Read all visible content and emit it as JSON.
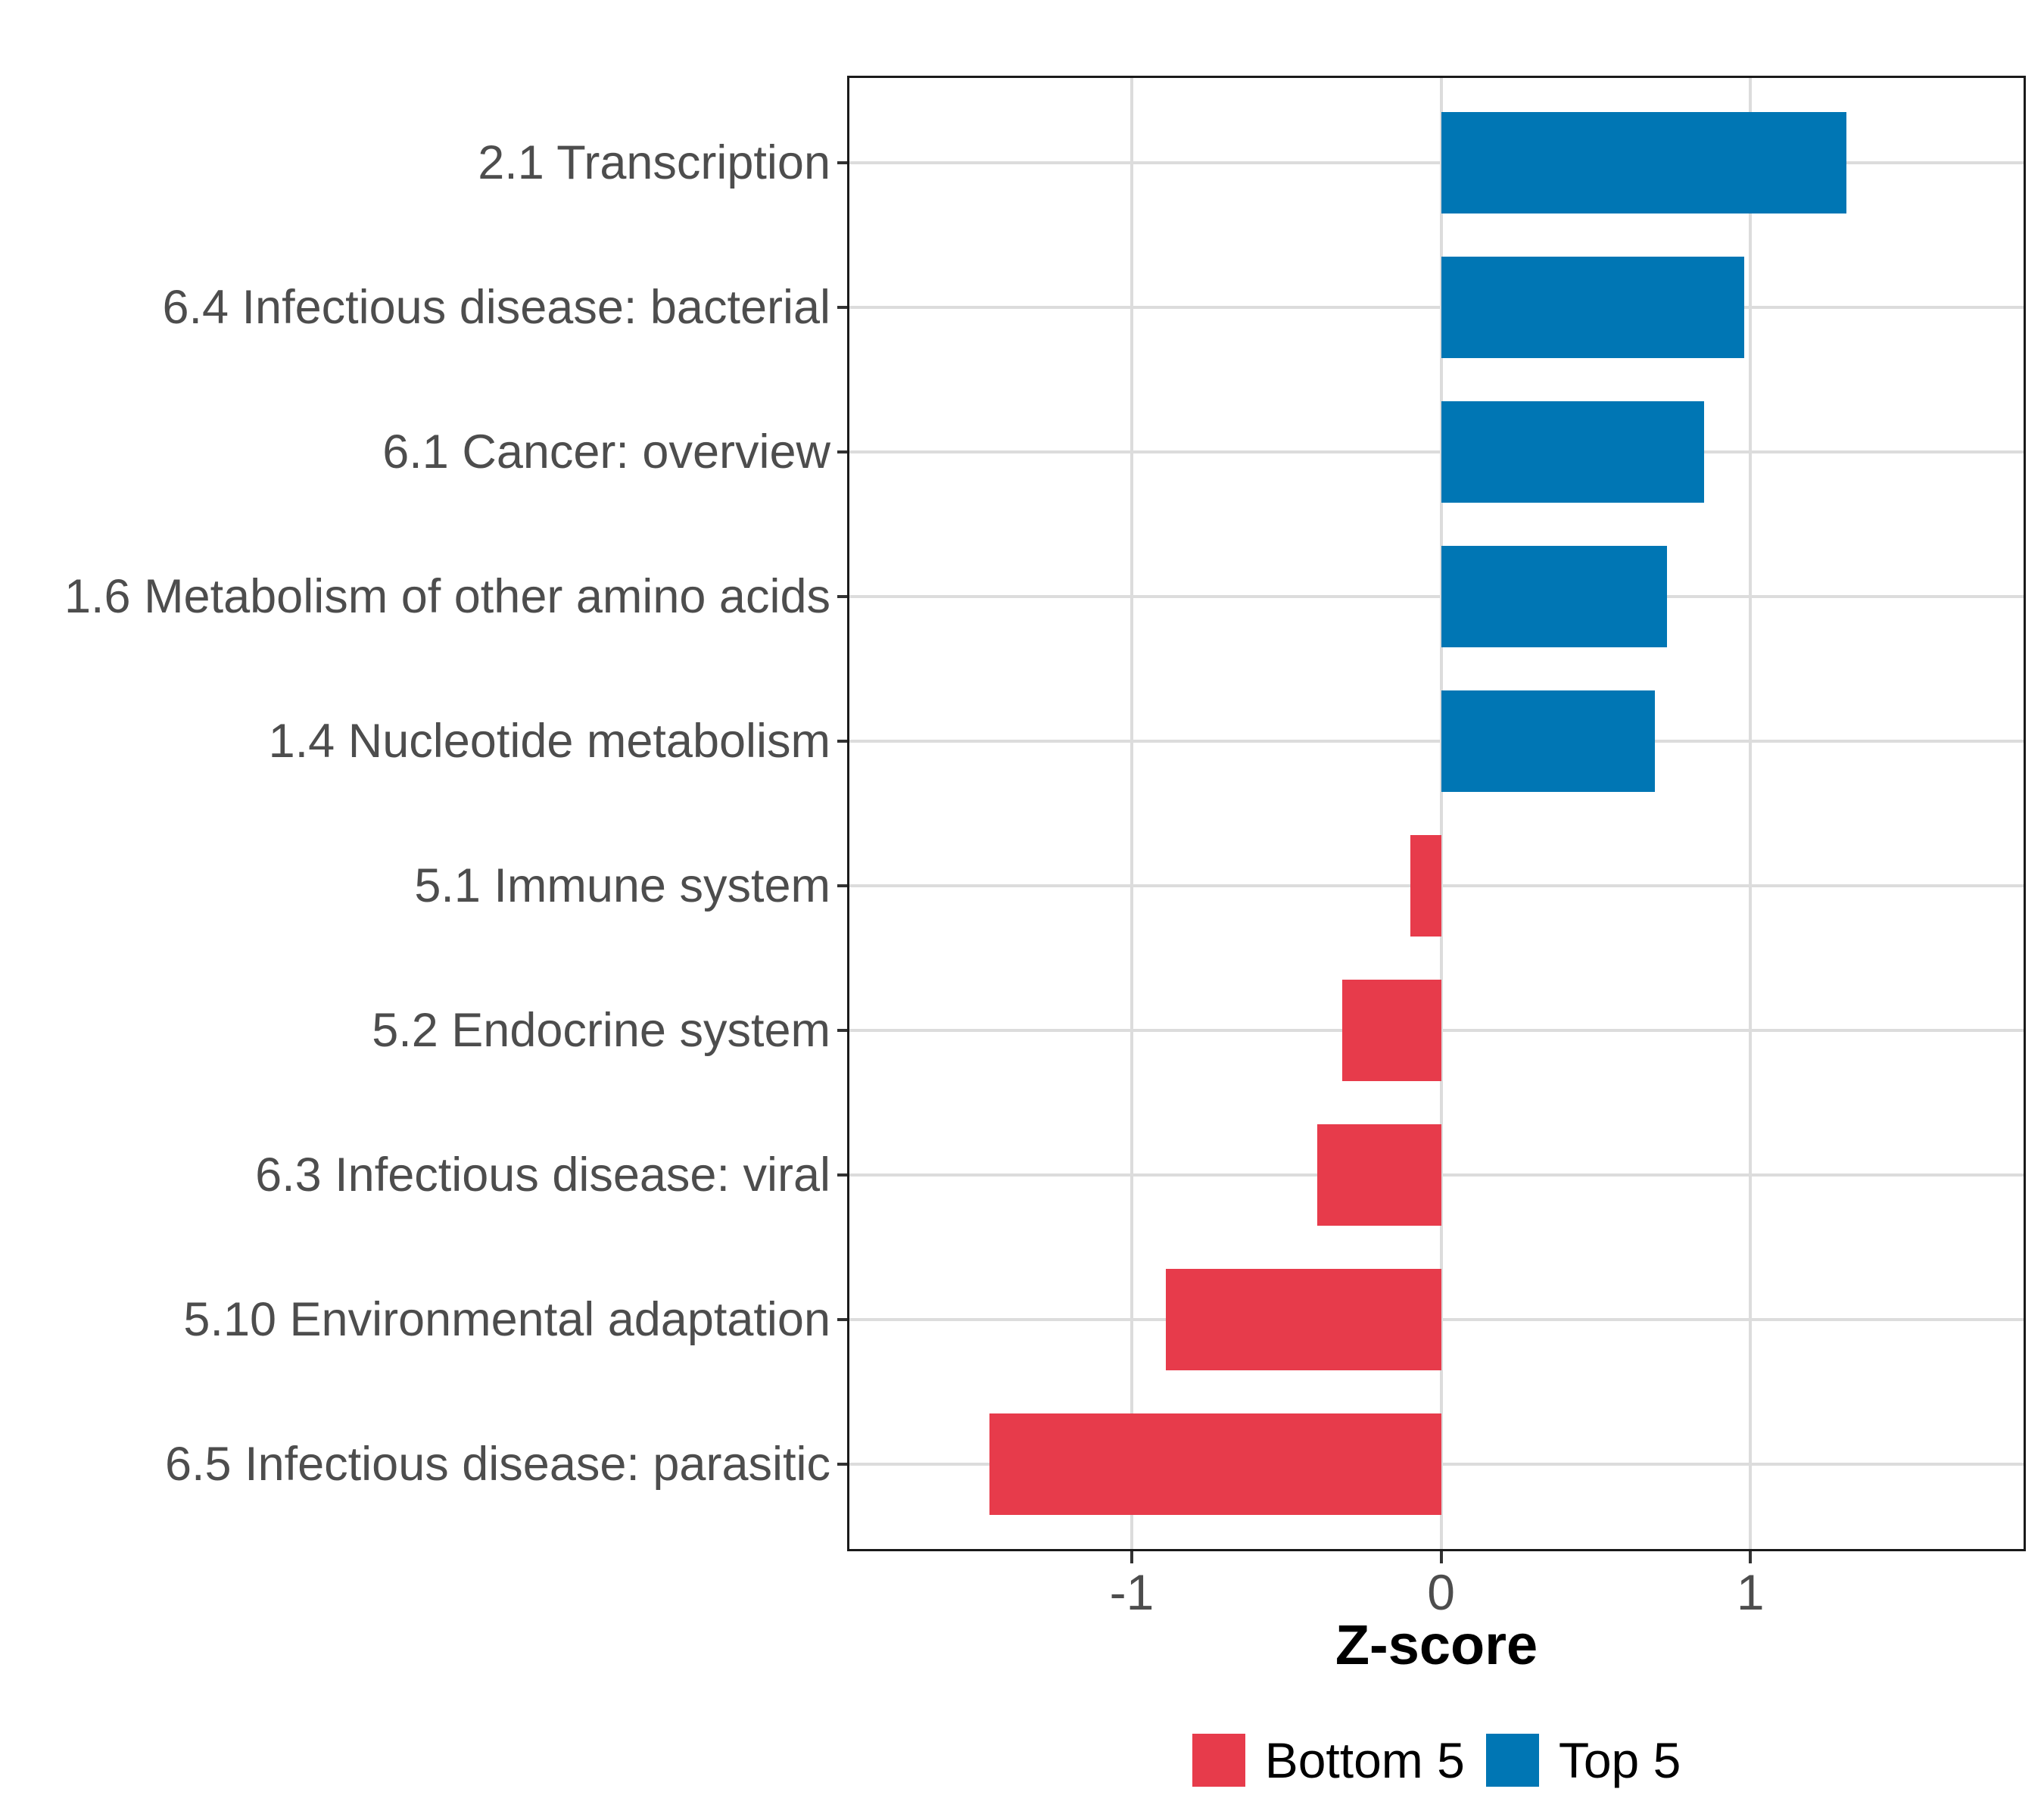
{
  "chart_data": {
    "type": "bar",
    "orientation": "horizontal",
    "title": "",
    "xlabel": "Z-score",
    "ylabel": "",
    "categories": [
      "2.1 Transcription",
      "6.4 Infectious disease: bacterial",
      "6.1 Cancer: overview",
      "1.6 Metabolism of other amino acids",
      "1.4 Nucleotide metabolism",
      "5.1 Immune system",
      "5.2 Endocrine system",
      "6.3 Infectious disease: viral",
      "5.10 Environmental adaptation",
      "6.5 Infectious disease: parasitic"
    ],
    "series": [
      {
        "name": "Z-score",
        "values": [
          1.31,
          0.98,
          0.85,
          0.73,
          0.69,
          -0.1,
          -0.32,
          -0.4,
          -0.89,
          -1.46
        ]
      }
    ],
    "groups": [
      "Top 5",
      "Top 5",
      "Top 5",
      "Top 5",
      "Top 5",
      "Bottom 5",
      "Bottom 5",
      "Bottom 5",
      "Bottom 5",
      "Bottom 5"
    ],
    "group_colors": {
      "Top 5": "#0076B4",
      "Bottom 5": "#E73B4B"
    },
    "x_ticks": [
      {
        "value": -1,
        "label": "-1"
      },
      {
        "value": 0,
        "label": "0"
      },
      {
        "value": 1,
        "label": "1"
      }
    ],
    "xlim": [
      -1.92,
      1.89
    ],
    "grid": "major-only",
    "gridline_color": "#DCDCDC",
    "panel_border_color": "#1A1A1A",
    "axis_text_color": "#4D4D4D",
    "legend": {
      "position": "bottom",
      "entries": [
        {
          "label": "Bottom 5",
          "color": "#E73B4B"
        },
        {
          "label": "Top 5",
          "color": "#0076B4"
        }
      ]
    }
  }
}
